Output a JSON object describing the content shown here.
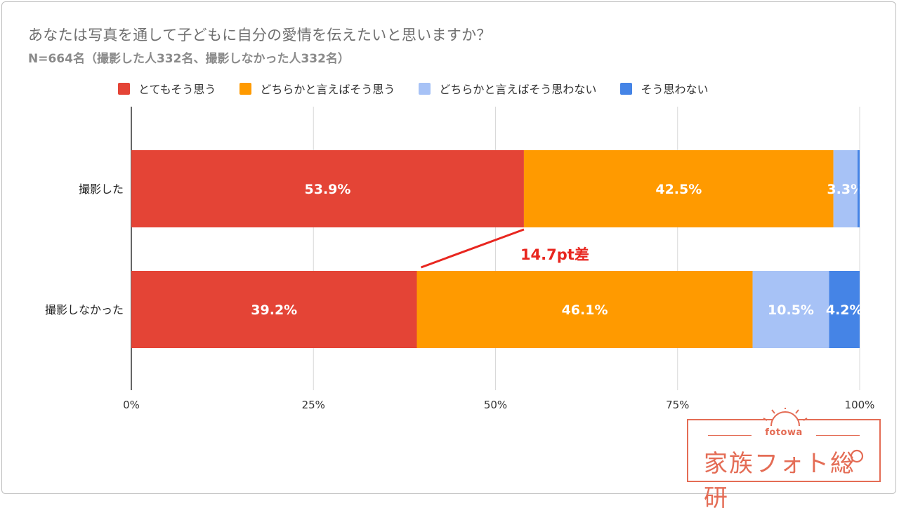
{
  "chart_data": {
    "type": "bar",
    "orientation": "horizontal",
    "stacked": true,
    "title": "あなたは写真を通して子どもに自分の愛情を伝えたいと思いますか？",
    "subtitle": "N=664名（撮影した人332名、撮影しなかった人332名）",
    "categories": [
      "撮影した",
      "撮影しなかった"
    ],
    "series": [
      {
        "name": "とてもそう思う",
        "color": "#e44436",
        "values": [
          53.9,
          39.2
        ],
        "labels": [
          "53.9%",
          "39.2%"
        ]
      },
      {
        "name": "どちらかと言えばそう思う",
        "color": "#ff9a00",
        "values": [
          42.5,
          46.1
        ],
        "labels": [
          "42.5%",
          "46.1%"
        ]
      },
      {
        "name": "どちらかと言えばそう思わない",
        "color": "#a7c2f6",
        "values": [
          3.3,
          10.5
        ],
        "labels": [
          "3.3%",
          "10.5%"
        ]
      },
      {
        "name": "そう思わない",
        "color": "#4584e6",
        "values": [
          0.3,
          4.2
        ],
        "labels": [
          "",
          "4.2%"
        ]
      }
    ],
    "xlim": [
      0,
      100
    ],
    "xticks": [
      "0%",
      "25%",
      "50%",
      "75%",
      "100%"
    ],
    "grid": true,
    "legend_position": "top",
    "annotation": {
      "text": "14.7pt差",
      "color": "#e8261f"
    }
  },
  "watermark": {
    "brand_small": "fotowa",
    "brand_big": "家族フォト総研",
    "color": "#e46c55"
  }
}
